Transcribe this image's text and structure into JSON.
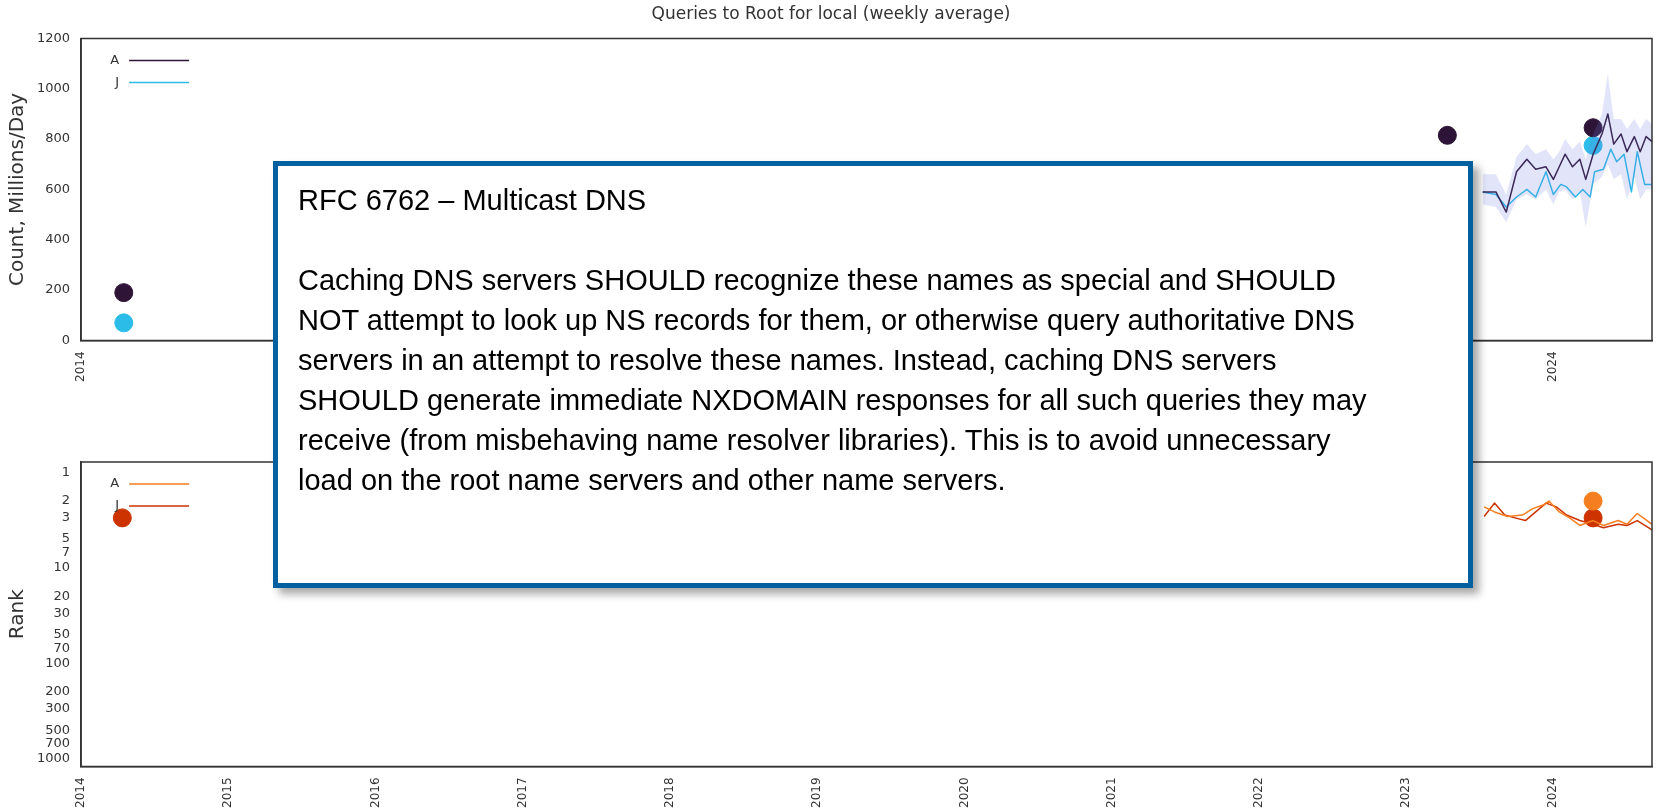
{
  "chart_data": [
    {
      "type": "line",
      "title": "Queries to Root for local (weekly average)",
      "ylabel": "Count, Millions/Day",
      "xlim": [
        2014,
        2024.67
      ],
      "ylim": [
        0,
        1200
      ],
      "xticks": [
        2014,
        2024
      ],
      "yticks": [
        0,
        200,
        400,
        600,
        800,
        1000,
        1200
      ],
      "grid": false,
      "legend": "top left",
      "series": [
        {
          "name": "A",
          "type": "line",
          "color": "#2e1437",
          "x": [
            2023.52,
            2023.61,
            2023.68,
            2023.75,
            2023.82,
            2023.88,
            2023.95,
            2024.0,
            2024.04,
            2024.08,
            2024.13,
            2024.18,
            2024.22,
            2024.27,
            2024.33,
            2024.37,
            2024.41,
            2024.46,
            2024.5,
            2024.55,
            2024.59,
            2024.63,
            2024.67
          ],
          "values": [
            590,
            590,
            510,
            670,
            720,
            680,
            690,
            640,
            690,
            740,
            690,
            720,
            640,
            740,
            820,
            900,
            780,
            820,
            750,
            810,
            750,
            810,
            790
          ],
          "lower": [
            540,
            530,
            470,
            560,
            580,
            560,
            600,
            540,
            590,
            600,
            560,
            590,
            450,
            620,
            650,
            700,
            640,
            660,
            560,
            650,
            560,
            600,
            600
          ],
          "upper": [
            660,
            660,
            580,
            730,
            780,
            740,
            760,
            720,
            750,
            800,
            760,
            790,
            720,
            820,
            900,
            1060,
            880,
            880,
            840,
            880,
            840,
            880,
            860
          ]
        },
        {
          "name": "J",
          "type": "line",
          "color": "#2bbde8",
          "x": [
            2023.52,
            2023.61,
            2023.68,
            2023.75,
            2023.82,
            2023.88,
            2023.95,
            2024.0,
            2024.05,
            2024.09,
            2024.15,
            2024.2,
            2024.25,
            2024.28,
            2024.34,
            2024.39,
            2024.43,
            2024.48,
            2024.53,
            2024.57,
            2024.62,
            2024.67
          ],
          "values": [
            590,
            580,
            530,
            570,
            600,
            570,
            670,
            580,
            620,
            610,
            570,
            600,
            570,
            670,
            680,
            760,
            710,
            740,
            590,
            750,
            620,
            620
          ]
        },
        {
          "type": "scatter",
          "color": "#2e1437",
          "x": [
            2014.29,
            2023.28,
            2024.27
          ],
          "values": [
            190,
            815,
            845
          ]
        },
        {
          "type": "scatter",
          "color": "#2bbde8",
          "x": [
            2014.29,
            2024.27
          ],
          "values": [
            70,
            775
          ]
        }
      ]
    },
    {
      "type": "line",
      "ylabel": "Rank",
      "log": true,
      "xlim": [
        2014,
        2024.67
      ],
      "ylim": [
        1200,
        0.78
      ],
      "xticks": [
        2014,
        2015,
        2016,
        2017,
        2018,
        2019,
        2020,
        2021,
        2022,
        2023,
        2024
      ],
      "yticks": [
        1,
        2,
        3,
        5,
        7,
        10,
        20,
        30,
        50,
        70,
        100,
        200,
        300,
        500,
        700,
        1000
      ],
      "grid": false,
      "legend": "top left",
      "series": [
        {
          "name": "A",
          "type": "line",
          "color": "#f57f20",
          "x": [
            2023.53,
            2023.6,
            2023.69,
            2023.79,
            2023.86,
            2023.93,
            2023.97,
            2024.04,
            2024.11,
            2024.18,
            2024.27,
            2024.34,
            2024.44,
            2024.5,
            2024.57,
            2024.67
          ],
          "values": [
            2.3,
            2.6,
            2.9,
            2.8,
            2.4,
            2.2,
            2.0,
            2.6,
            3.0,
            3.6,
            3.2,
            3.6,
            3.2,
            3.5,
            2.7,
            3.5
          ]
        },
        {
          "name": "J",
          "type": "line",
          "color": "#cc3300",
          "x": [
            2023.53,
            2023.6,
            2023.67,
            2023.74,
            2023.81,
            2023.88,
            2023.95,
            2024.02,
            2024.09,
            2024.18,
            2024.27,
            2024.34,
            2024.44,
            2024.5,
            2024.57,
            2024.67
          ],
          "values": [
            2.9,
            2.1,
            2.8,
            3.0,
            3.2,
            2.6,
            2.1,
            2.3,
            2.8,
            3.2,
            3.5,
            3.8,
            3.5,
            3.6,
            3.2,
            4.0
          ]
        },
        {
          "type": "scatter",
          "color": "#f57f20",
          "x": [
            2024.27
          ],
          "values": [
            2.0
          ]
        },
        {
          "type": "scatter",
          "color": "#cc3300",
          "x": [
            2014.28,
            2024.27
          ],
          "values": [
            3.0,
            3.0
          ]
        }
      ]
    },
    {
      "type": "other",
      "title": "RFC 6762 – Multicast DNS",
      "annotations": [
        "Caching DNS servers SHOULD recognize these names as special and SHOULD NOT attempt to look up NS records for them, or otherwise query authoritative DNS servers in an attempt to resolve these names. Instead, caching DNS servers SHOULD generate immediate NXDOMAIN responses for all such queries they may receive (from misbehaving name resolver libraries). This is to avoid unnecessary load on the root name servers and other name servers."
      ]
    }
  ]
}
